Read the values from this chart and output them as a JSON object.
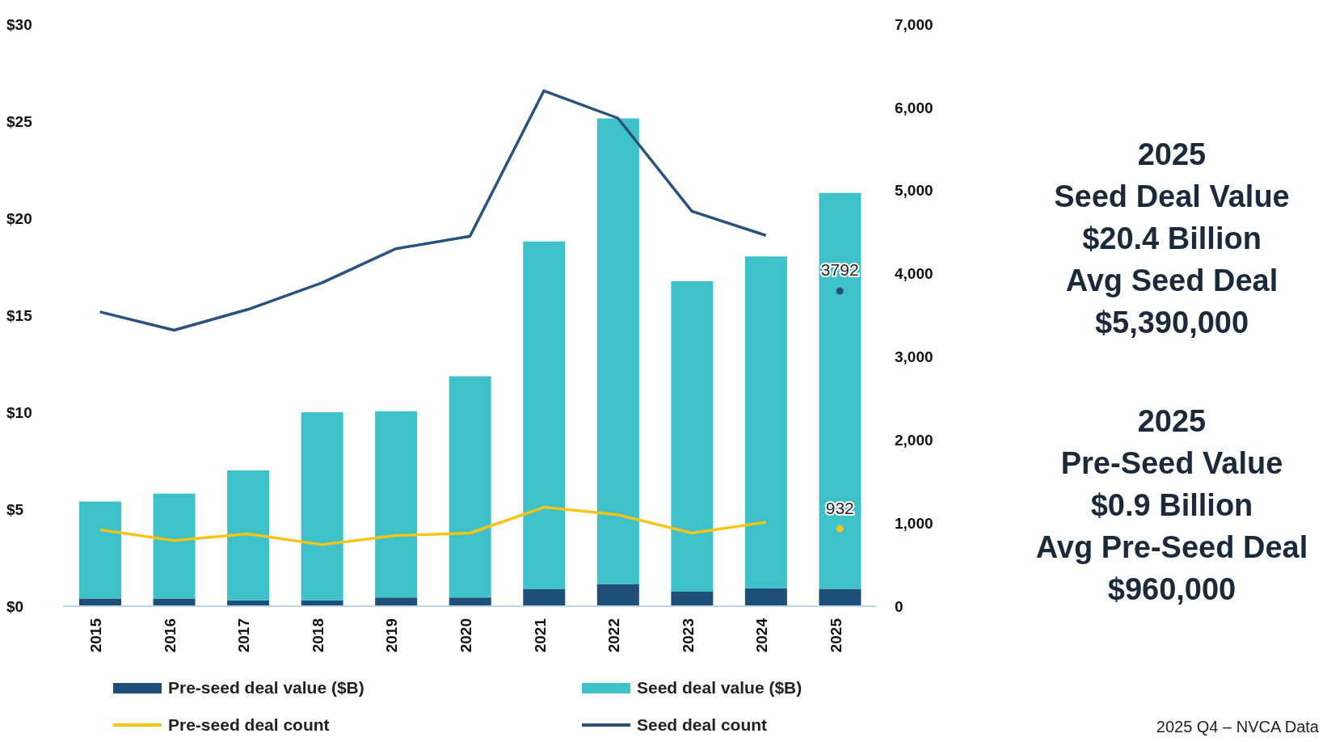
{
  "chart_data": {
    "type": "bar",
    "stacked": true,
    "legend": "bottom",
    "categories": [
      "2015",
      "2016",
      "2017",
      "2018",
      "2019",
      "2020",
      "2021",
      "2022",
      "2023",
      "2024",
      "2025"
    ],
    "ylim": [
      0,
      30
    ],
    "yticks": [
      {
        "value": 0,
        "label": "$0"
      },
      {
        "value": 5,
        "label": "$5"
      },
      {
        "value": 10,
        "label": "$10"
      },
      {
        "value": 15,
        "label": "$15"
      },
      {
        "value": 20,
        "label": "$20"
      },
      {
        "value": 25,
        "label": "$25"
      },
      {
        "value": 30,
        "label": "$30"
      }
    ],
    "y2lim": [
      0,
      7000
    ],
    "y2ticks": [
      0,
      {
        "value": 1000,
        "label": "1,000"
      },
      {
        "value": 2000,
        "label": "2,000"
      },
      {
        "value": 3000,
        "label": "3,000"
      },
      {
        "value": 4000,
        "label": "4,000"
      },
      {
        "value": 5000,
        "label": "5,000"
      },
      {
        "value": 6000,
        "label": "6,000"
      },
      {
        "value": 7000,
        "label": "7,000"
      }
    ],
    "series": [
      {
        "name": "Pre-seed deal value ($B)",
        "color": "#1f4e79",
        "values": [
          0.4,
          0.4,
          0.3,
          0.3,
          0.45,
          0.45,
          0.9,
          1.15,
          0.75,
          0.93,
          0.9
        ]
      },
      {
        "name": "Seed deal value ($B)",
        "color": "#3ec1c9",
        "values": [
          5.0,
          5.4,
          6.7,
          9.7,
          9.6,
          11.4,
          17.9,
          24.0,
          16.0,
          17.1,
          20.4
        ]
      },
      {
        "name": "Pre-seed deal count",
        "type": "line",
        "axis": "y2",
        "marker": "none",
        "color": "#f5c518",
        "values": [
          920,
          790,
          870,
          740,
          850,
          880,
          1190,
          1100,
          880,
          1010,
          null
        ]
      },
      {
        "name": "Seed deal count",
        "type": "line",
        "axis": "y2",
        "marker": "none",
        "color": "#2a527f",
        "values": [
          3540,
          3320,
          3570,
          3890,
          4300,
          4450,
          6200,
          5870,
          4750,
          4460,
          null
        ]
      },
      {
        "type": "scatter",
        "axis": "y2",
        "marker": "circle",
        "color": "#2a527f",
        "values": [
          null,
          null,
          null,
          null,
          null,
          null,
          null,
          null,
          null,
          null,
          3792
        ],
        "value_labels": [
          null,
          null,
          null,
          null,
          null,
          null,
          null,
          null,
          null,
          null,
          "3792"
        ]
      },
      {
        "type": "scatter",
        "axis": "y2",
        "marker": "circle",
        "color": "#f5c518",
        "values": [
          null,
          null,
          null,
          null,
          null,
          null,
          null,
          null,
          null,
          null,
          932
        ],
        "value_labels": [
          null,
          null,
          null,
          null,
          null,
          null,
          null,
          null,
          null,
          null,
          "932"
        ]
      }
    ],
    "annotations": [
      "2025\nSeed Deal Value\n$20.4 Billion\nAvg Seed Deal\n$5,390,000",
      "2025\nPre-Seed Value\n$0.9 Billion\nAvg Pre-Seed Deal\n$960,000",
      "2025 Q4 – NVCA Data"
    ]
  }
}
